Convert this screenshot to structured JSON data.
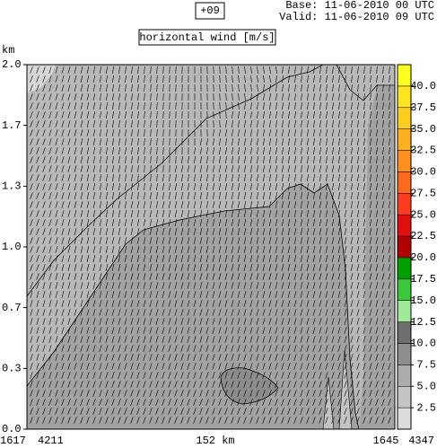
{
  "header": {
    "step": "+09",
    "base": "Base: 11-06-2010  00 UTC",
    "valid": "Valid: 11-06-2010  09 UTC"
  },
  "chart_data": {
    "type": "cross-section",
    "title": "horizontal wind [m/s]",
    "y_label": "km",
    "ylim": [
      0,
      2
    ],
    "yticks": [
      {
        "value": 0,
        "label": "0.0"
      },
      {
        "value": 0.333,
        "label": "0.3"
      },
      {
        "value": 0.667,
        "label": "0.7"
      },
      {
        "value": 1,
        "label": "1.0"
      },
      {
        "value": 1.333,
        "label": "1.3"
      },
      {
        "value": 1.667,
        "label": "1.7"
      },
      {
        "value": 2,
        "label": "2.0"
      }
    ],
    "x_labels": [
      "1617",
      "4211",
      "152 km",
      "1645",
      "4347"
    ],
    "colorbar": {
      "lim": [
        0,
        42.5
      ],
      "colors": [
        "#dcdcdc",
        "#c4c4c4",
        "#acacac",
        "#8e8e8e",
        "#6e6e6e",
        "#a0e89a",
        "#3cc83c",
        "#00a000",
        "#b00000",
        "#e01010",
        "#ff3c1e",
        "#ff6a1e",
        "#ff9020",
        "#ffb020",
        "#ffcc20",
        "#ffe420",
        "#ffff20"
      ],
      "ticks": [
        2.5,
        {
          "value": 5,
          "label": "5.0"
        },
        7.5,
        {
          "value": 10,
          "label": "10.0"
        },
        12.5,
        {
          "value": 15,
          "label": "15.0"
        },
        17.5,
        {
          "value": 20,
          "label": "20.0"
        },
        22.5,
        {
          "value": 25,
          "label": "25.0"
        },
        27.5,
        {
          "value": 30,
          "label": "30.0"
        },
        32.5,
        {
          "value": 35,
          "label": "35.0"
        },
        37.5,
        {
          "value": 40,
          "label": "40.0"
        }
      ]
    }
  }
}
